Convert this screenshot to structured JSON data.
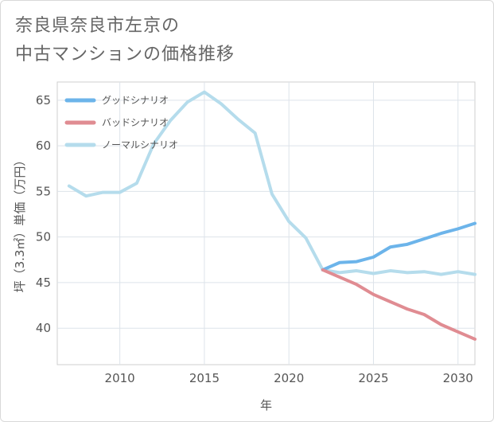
{
  "title": {
    "line1": "奈良県奈良市左京の",
    "line2": "中古マンションの価格推移"
  },
  "chart_data": {
    "type": "line",
    "title": "奈良県奈良市左京の中古マンションの価格推移",
    "xlabel": "年",
    "ylabel": "坪（3.3㎡）単価（万円）",
    "xlim": [
      2006.3,
      2031
    ],
    "ylim": [
      36,
      67
    ],
    "x_ticks": [
      2010,
      2015,
      2020,
      2025,
      2030
    ],
    "y_ticks": [
      40,
      45,
      50,
      55,
      60,
      65
    ],
    "grid": true,
    "legend_position": "top-left",
    "series": [
      {
        "name": "グッドシナリオ",
        "color": "#6cb4ea",
        "x": [
          2022,
          2023,
          2024,
          2025,
          2026,
          2027,
          2028,
          2029,
          2030,
          2031
        ],
        "values": [
          46.4,
          47.2,
          47.3,
          47.8,
          48.9,
          49.2,
          49.8,
          50.4,
          50.9,
          51.5
        ]
      },
      {
        "name": "バッドシナリオ",
        "color": "#e08c92",
        "x": [
          2022,
          2023,
          2024,
          2025,
          2026,
          2027,
          2028,
          2029,
          2030,
          2031
        ],
        "values": [
          46.4,
          45.6,
          44.8,
          43.7,
          42.9,
          42.1,
          41.5,
          40.4,
          39.6,
          38.8
        ]
      },
      {
        "name": "ノーマルシナリオ",
        "color": "#b5dcec",
        "x": [
          2007,
          2008,
          2009,
          2010,
          2011,
          2012,
          2013,
          2014,
          2015,
          2016,
          2017,
          2018,
          2019,
          2020,
          2021,
          2022,
          2023,
          2024,
          2025,
          2026,
          2027,
          2028,
          2029,
          2030,
          2031
        ],
        "values": [
          55.6,
          54.5,
          54.9,
          54.9,
          55.9,
          60.2,
          62.8,
          64.8,
          65.9,
          64.6,
          62.9,
          61.4,
          54.7,
          51.7,
          49.9,
          46.4,
          46.1,
          46.3,
          46.0,
          46.3,
          46.1,
          46.2,
          45.9,
          46.2,
          45.9
        ]
      }
    ]
  }
}
